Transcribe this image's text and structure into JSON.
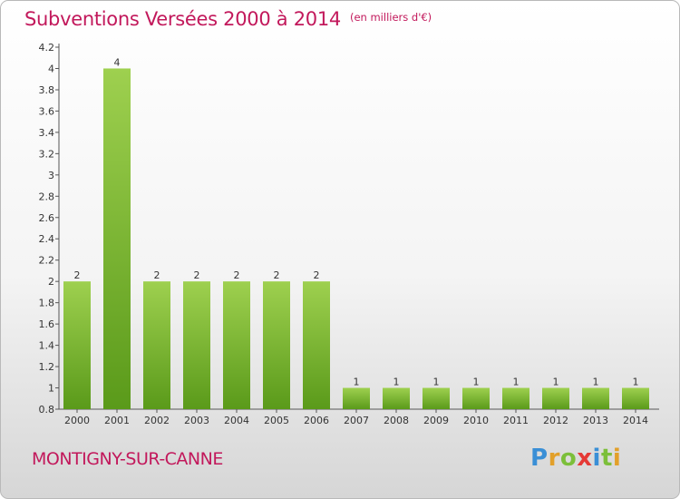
{
  "title": "Subventions Versées 2000 à 2014",
  "subtitle": "(en milliers d'€)",
  "commune": "MONTIGNY-SUR-CANNE",
  "logo": "Proxiti",
  "colors": {
    "accent": "#c2185b",
    "bar_top": "#9ed04f",
    "bar_bottom": "#5a9a1a"
  },
  "chart_data": {
    "type": "bar",
    "title": "Subventions Versées 2000 à 2014",
    "subtitle": "(en milliers d'€)",
    "categories": [
      "2000",
      "2001",
      "2002",
      "2003",
      "2004",
      "2005",
      "2006",
      "2007",
      "2008",
      "2009",
      "2010",
      "2011",
      "2012",
      "2013",
      "2014"
    ],
    "values": [
      2,
      4,
      2,
      2,
      2,
      2,
      2,
      1,
      1,
      1,
      1,
      1,
      1,
      1,
      1
    ],
    "data_labels": [
      "2",
      "4",
      "2",
      "2",
      "2",
      "2",
      "2",
      "1",
      "1",
      "1",
      "1",
      "1",
      "1",
      "1",
      "1"
    ],
    "ylim": [
      0.8,
      4.2
    ],
    "yticks": [
      "0.8",
      "1",
      "1.2",
      "1.4",
      "1.6",
      "1.8",
      "2",
      "2.2",
      "2.4",
      "2.6",
      "2.8",
      "3",
      "3.2",
      "3.4",
      "3.6",
      "3.8",
      "4",
      "4.2"
    ],
    "grid": false,
    "legend": "none"
  }
}
